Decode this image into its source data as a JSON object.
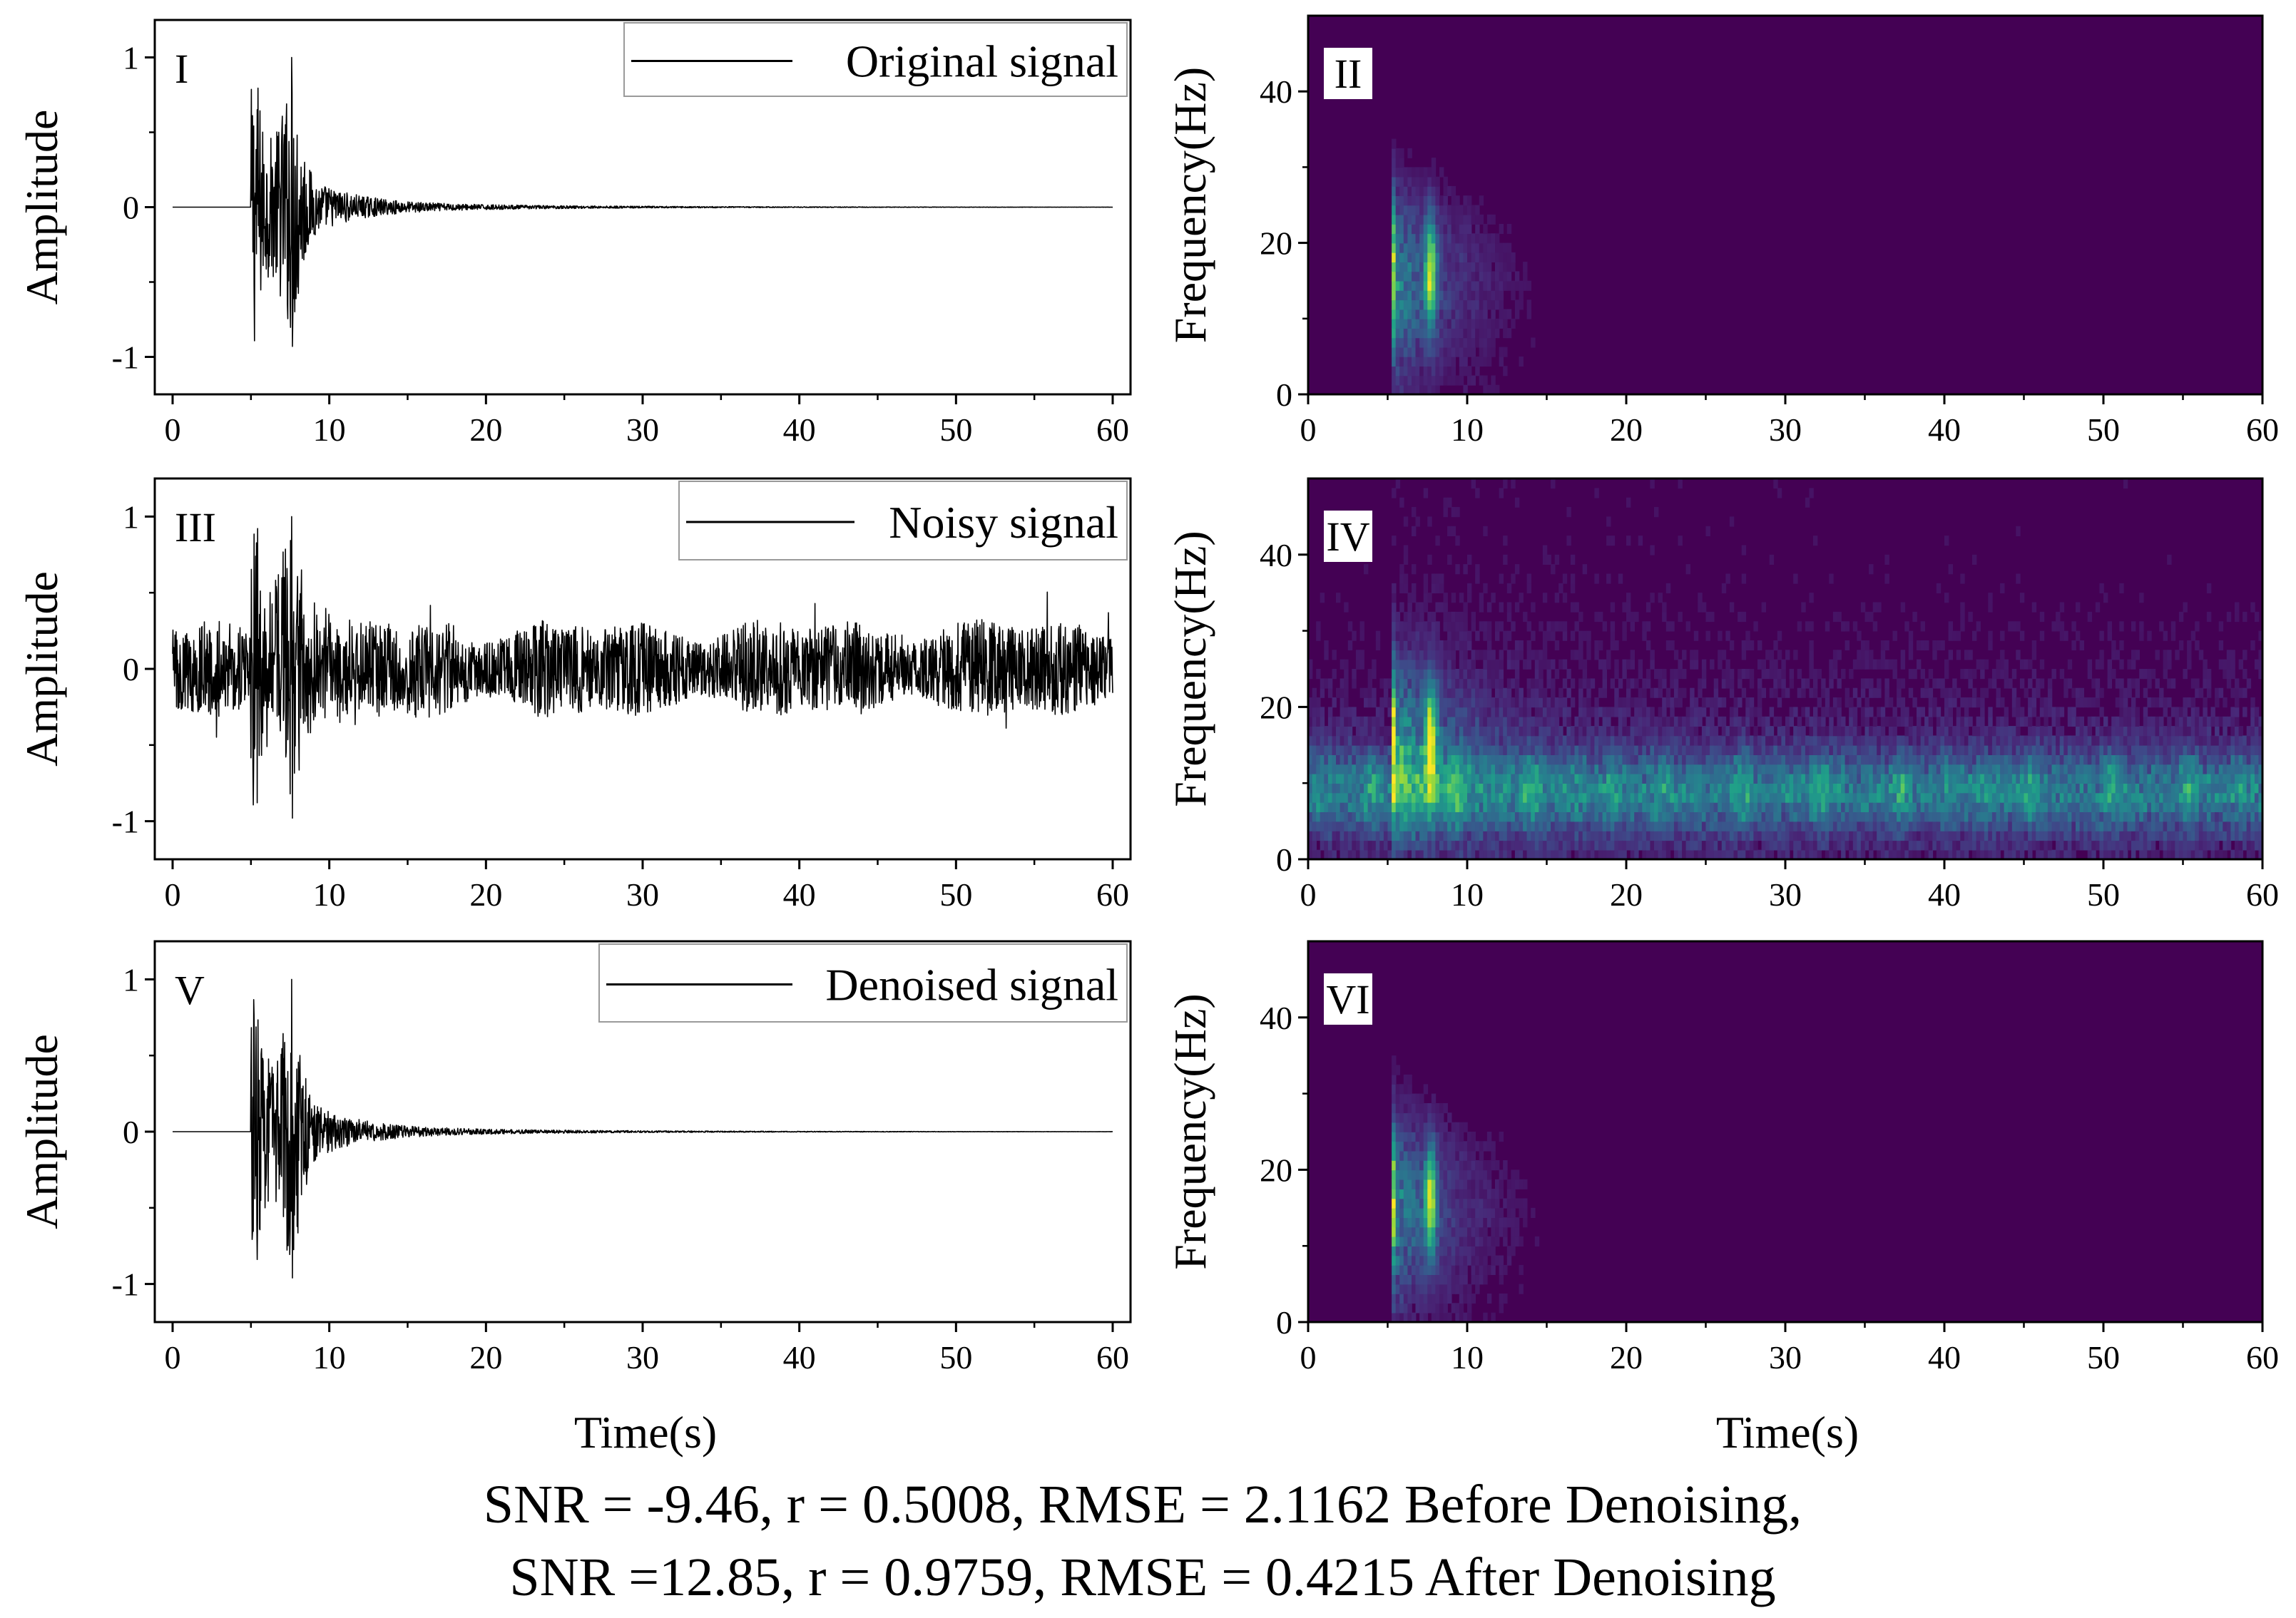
{
  "chart_data": [
    {
      "id": "I",
      "type": "line",
      "panel_label": "I",
      "legend": "Original signal",
      "ylabel": "Amplitude",
      "xlabel": "",
      "xlim": [
        0,
        60
      ],
      "ylim": [
        -1.25,
        1.25
      ],
      "x_ticks": [
        "0",
        "10",
        "20",
        "30",
        "40",
        "50",
        "60"
      ],
      "y_ticks": [
        "1",
        "0",
        "-1"
      ],
      "waveform": {
        "onset_s": 5,
        "peak_s": 7.6,
        "max_amplitude": 1.0,
        "min_amplitude": -0.93,
        "decay": "exponential",
        "noise_level": 0.0
      }
    },
    {
      "id": "II",
      "type": "heatmap",
      "panel_label": "II",
      "ylabel": "Frequency(Hz)",
      "xlabel": "",
      "xlim": [
        0,
        60
      ],
      "ylim": [
        0,
        50
      ],
      "x_ticks": [
        "0",
        "10",
        "20",
        "30",
        "40",
        "50",
        "60"
      ],
      "y_ticks": [
        "40",
        "20",
        "0"
      ],
      "spectrogram": {
        "event_onset_s": 5.2,
        "event_peak_s": 7.7,
        "dominant_band_hz": [
          10,
          22
        ],
        "noise_band_hz": null
      }
    },
    {
      "id": "III",
      "type": "line",
      "panel_label": "III",
      "legend": "Noisy signal",
      "ylabel": "Amplitude",
      "xlabel": "",
      "xlim": [
        0,
        60
      ],
      "ylim": [
        -1.25,
        1.25
      ],
      "x_ticks": [
        "0",
        "10",
        "20",
        "30",
        "40",
        "50",
        "60"
      ],
      "y_ticks": [
        "1",
        "0",
        "-1"
      ],
      "waveform": {
        "onset_s": 5,
        "peak_s": 7.6,
        "max_amplitude": 1.0,
        "min_amplitude": -0.98,
        "decay": "exponential",
        "noise_level": 0.3
      }
    },
    {
      "id": "IV",
      "type": "heatmap",
      "panel_label": "IV",
      "ylabel": "Frequency(Hz)",
      "xlabel": "",
      "xlim": [
        0,
        60
      ],
      "ylim": [
        0,
        50
      ],
      "x_ticks": [
        "0",
        "10",
        "20",
        "30",
        "40",
        "50",
        "60"
      ],
      "y_ticks": [
        "40",
        "20",
        "0"
      ],
      "spectrogram": {
        "event_onset_s": 5.2,
        "event_peak_s": 7.7,
        "dominant_band_hz": [
          10,
          22
        ],
        "noise_band_hz": [
          5,
          13
        ]
      }
    },
    {
      "id": "V",
      "type": "line",
      "panel_label": "V",
      "legend": "Denoised signal",
      "ylabel": "Amplitude",
      "xlabel": "Time(s)",
      "xlim": [
        0,
        60
      ],
      "ylim": [
        -1.25,
        1.25
      ],
      "x_ticks": [
        "0",
        "10",
        "20",
        "30",
        "40",
        "50",
        "60"
      ],
      "y_ticks": [
        "1",
        "0",
        "-1"
      ],
      "waveform": {
        "onset_s": 5,
        "peak_s": 7.6,
        "max_amplitude": 1.0,
        "min_amplitude": -0.96,
        "decay": "exponential",
        "noise_level": 0.0
      }
    },
    {
      "id": "VI",
      "type": "heatmap",
      "panel_label": "VI",
      "ylabel": "Frequency(Hz)",
      "xlabel": "Time(s)",
      "xlim": [
        0,
        60
      ],
      "ylim": [
        0,
        50
      ],
      "x_ticks": [
        "0",
        "10",
        "20",
        "30",
        "40",
        "50",
        "60"
      ],
      "y_ticks": [
        "40",
        "20",
        "0"
      ],
      "spectrogram": {
        "event_onset_s": 5.2,
        "event_peak_s": 7.7,
        "dominant_band_hz": [
          10,
          22
        ],
        "noise_band_hz": null
      }
    }
  ],
  "footer": {
    "line1": "SNR = -9.46, r = 0.5008, RMSE = 2.1162 Before Denoising,",
    "line2": "SNR =12.85, r = 0.9759, RMSE = 0.4215 After Denoising"
  },
  "colors": {
    "line": "#000000",
    "spectrogram_background": "#440154",
    "viridis": [
      "#440154",
      "#482878",
      "#3e4a89",
      "#31688e",
      "#26828e",
      "#1f9e89",
      "#35b779",
      "#6ece58",
      "#b5de2b",
      "#fde725"
    ]
  }
}
